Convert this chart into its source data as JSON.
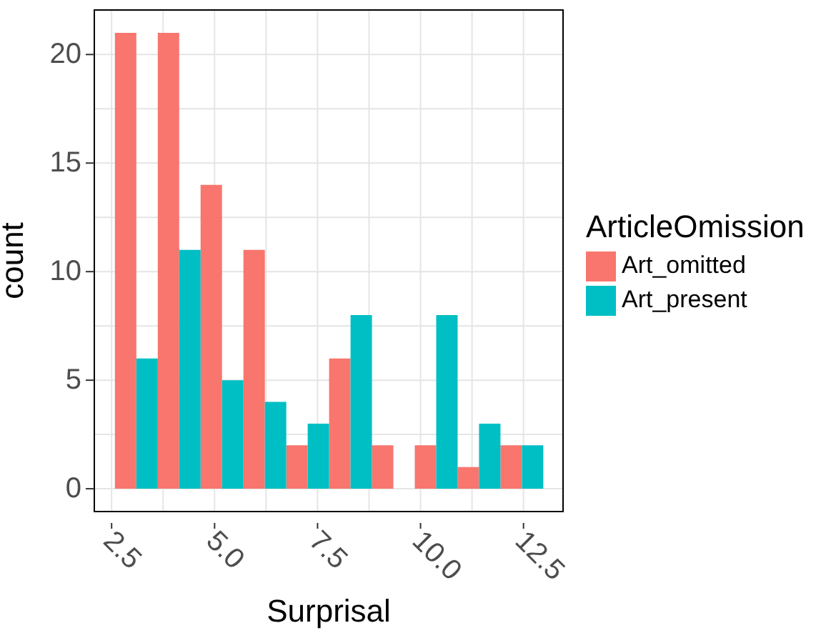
{
  "chart_data": {
    "type": "histogram",
    "xlabel": "Surprisal",
    "ylabel": "count",
    "legend_title": "ArticleOmission",
    "bins": [
      2.58,
      3.62,
      4.66,
      5.7,
      6.74,
      7.78,
      8.82,
      9.86,
      10.9,
      11.94,
      12.98
    ],
    "series": [
      {
        "name": "Art_omitted",
        "color": "#f8766d",
        "values": [
          21,
          21,
          14,
          11,
          2,
          6,
          2,
          2,
          1,
          2
        ]
      },
      {
        "name": "Art_present",
        "color": "#00bfc4",
        "values": [
          6,
          11,
          5,
          4,
          3,
          8,
          0,
          8,
          3,
          2
        ]
      }
    ],
    "xlim": [
      2.08,
      13.46
    ],
    "ylim": [
      -1.05,
      22.05
    ],
    "xticks": [
      2.5,
      {
        "value": 3.75,
        "label": null
      },
      "5.0",
      {
        "value": 6.25,
        "label": null
      },
      7.5,
      {
        "value": 8.75,
        "label": null
      },
      "10.0",
      {
        "value": 11.25,
        "label": null
      },
      12.5
    ],
    "yticks": [
      0,
      {
        "value": 2.5,
        "label": null
      },
      5,
      {
        "value": 7.5,
        "label": null
      },
      10,
      {
        "value": 12.5,
        "label": null
      },
      15,
      {
        "value": 17.5,
        "label": null
      },
      20
    ],
    "grid": true,
    "legend": "right"
  }
}
